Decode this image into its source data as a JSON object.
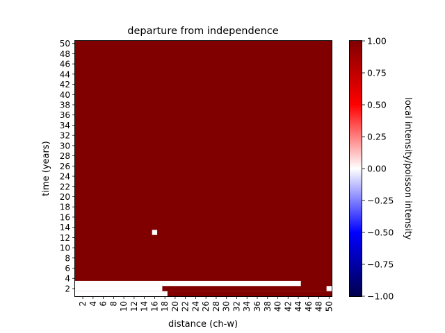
{
  "chart_data": {
    "type": "heatmap",
    "title": "departure from independence",
    "xlabel": "distance (ch-w)",
    "ylabel": "time (years)",
    "colorbar_label": "local intensity/poisson intensity",
    "colormap": "seismic",
    "vmin": -1.0,
    "vmax": 1.0,
    "x_range": [
      1,
      50
    ],
    "y_range": [
      1,
      50
    ],
    "x_ticks": [
      2,
      4,
      6,
      8,
      10,
      12,
      14,
      16,
      18,
      20,
      22,
      24,
      26,
      28,
      30,
      32,
      34,
      36,
      38,
      40,
      42,
      44,
      46,
      48,
      50
    ],
    "y_ticks": [
      2,
      4,
      6,
      8,
      10,
      12,
      14,
      16,
      18,
      20,
      22,
      24,
      26,
      28,
      30,
      32,
      34,
      36,
      38,
      40,
      42,
      44,
      46,
      48,
      50
    ],
    "colorbar_ticks": [
      "1.00",
      "0.75",
      "0.50",
      "0.25",
      "0.00",
      "−0.25",
      "−0.50",
      "−0.75",
      "−1.00"
    ],
    "default_value": 1.0,
    "cell_values": [
      {
        "x": [
          1,
          50
        ],
        "y": [
          1,
          1
        ],
        "value": 0.0
      },
      {
        "x": [
          19,
          50
        ],
        "y": [
          1,
          1
        ],
        "value": 1.0
      },
      {
        "x": [
          50,
          50
        ],
        "y": [
          2,
          2
        ],
        "value": 0.0
      },
      {
        "x": [
          1,
          17
        ],
        "y": [
          2,
          3
        ],
        "value": 0.0
      },
      {
        "x": [
          18,
          25
        ],
        "y": [
          2,
          2
        ],
        "value": 1.0
      },
      {
        "x": [
          18,
          44
        ],
        "y": [
          3,
          3
        ],
        "value": 0.0
      },
      {
        "x": [
          16,
          16
        ],
        "y": [
          13,
          13
        ],
        "value": 0.0
      }
    ]
  },
  "colors": {
    "high": "#800000",
    "neutral": "#ffffff",
    "low": "#00004c"
  }
}
